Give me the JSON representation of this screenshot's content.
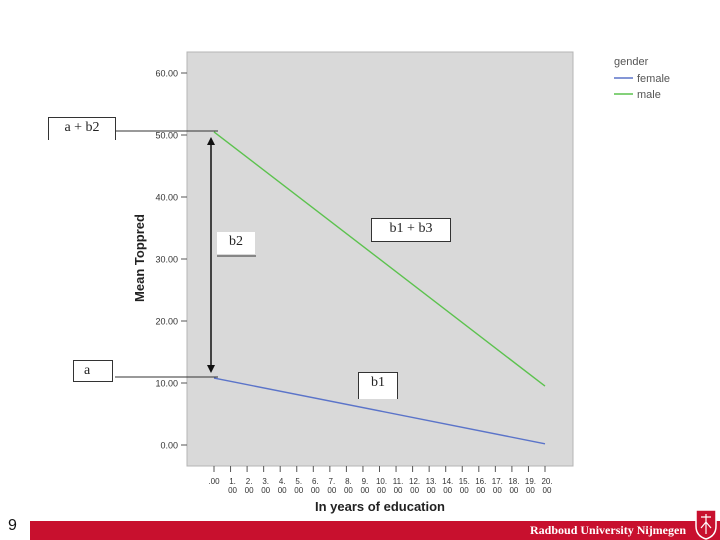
{
  "chart_data": {
    "type": "line",
    "xlabel": "In years of education",
    "ylabel": "Mean Toppred",
    "xlim": [
      0,
      20
    ],
    "ylim": [
      0,
      60
    ],
    "x_ticks": [
      ".00",
      "1.\n00",
      "2.\n00",
      "3.\n00",
      "4.\n00",
      "5.\n00",
      "6.\n00",
      "7.\n00",
      "8.\n00",
      "9.\n00",
      "10.\n00",
      "11.\n00",
      "12.\n00",
      "13.\n00",
      "14.\n00",
      "15.\n00",
      "16.\n00",
      "17.\n00",
      "18.\n00",
      "19.\n00",
      "20.\n00"
    ],
    "y_ticks": [
      "0.00",
      "10.00",
      "20.00",
      "30.00",
      "40.00",
      "50.00",
      "60.00"
    ],
    "legend_title": "gender",
    "legend_position": "top-right outside",
    "series": [
      {
        "name": "female",
        "color": "#5b74c9",
        "x": [
          0,
          20
        ],
        "y": [
          10.8,
          0.2
        ]
      },
      {
        "name": "male",
        "color": "#5cc24e",
        "x": [
          0,
          20
        ],
        "y": [
          50.5,
          9.5
        ]
      }
    ],
    "annotations": {
      "a_plus_b2": "a + b2",
      "b2": "b2",
      "b1_plus_b3": "b1 + b3",
      "a": "a",
      "b1": "b1"
    },
    "grid": false,
    "plot_background": "#d9d9d9"
  },
  "footer": {
    "page_number": "9",
    "university": "Radboud University Nijmegen",
    "bar_color": "#c8102e"
  }
}
